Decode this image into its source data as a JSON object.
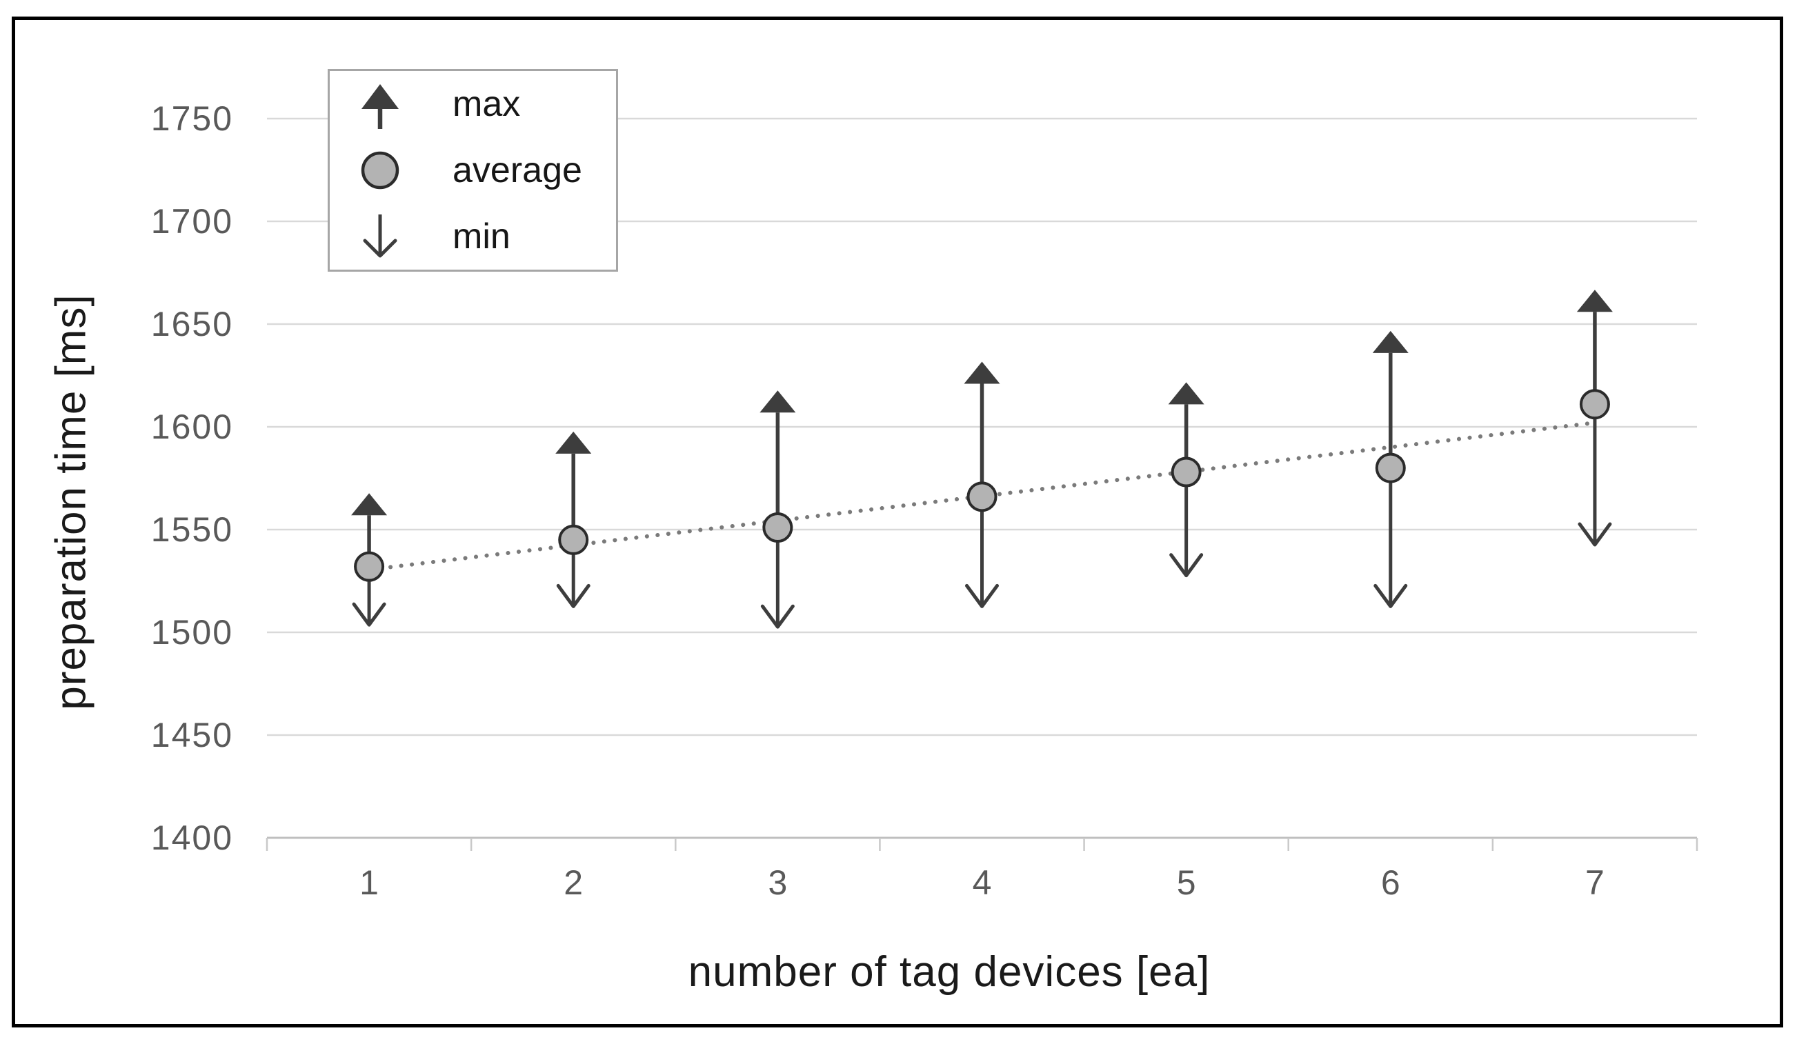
{
  "page": {
    "background": "#ffffff",
    "border_color": "#000000"
  },
  "axes": {
    "x_title": "number of tag devices [ea]",
    "y_title": "preparation time [ms]",
    "y_tick_labels": [
      "1750",
      "1700",
      "1650",
      "1600",
      "1550",
      "1500",
      "1450",
      "1400"
    ],
    "x_tick_labels": [
      "1",
      "2",
      "3",
      "4",
      "5",
      "6",
      "7"
    ]
  },
  "legend": {
    "items": [
      {
        "icon": "max-up-arrow-icon",
        "label": "max"
      },
      {
        "icon": "average-circle-icon",
        "label": "average"
      },
      {
        "icon": "min-down-arrow-icon",
        "label": "min"
      }
    ]
  },
  "chart_data": {
    "type": "scatter",
    "title": "",
    "xlabel": "number of tag devices [ea]",
    "ylabel": "preparation time [ms]",
    "categories": [
      1,
      2,
      3,
      4,
      5,
      6,
      7
    ],
    "series": [
      {
        "name": "max",
        "marker": "filled-up-arrow",
        "values": [
          1562,
          1592,
          1612,
          1626,
          1616,
          1641,
          1661
        ]
      },
      {
        "name": "average",
        "marker": "filled-circle",
        "values": [
          1532,
          1545,
          1551,
          1566,
          1578,
          1580,
          1611
        ]
      },
      {
        "name": "min",
        "marker": "open-down-arrow",
        "values": [
          1509,
          1518,
          1508,
          1518,
          1533,
          1518,
          1548
        ]
      }
    ],
    "trendline": {
      "series": "average",
      "style": "dotted",
      "x": [
        1,
        7
      ],
      "y": [
        1530.5,
        1602
      ]
    },
    "ylim": [
      1400,
      1750
    ],
    "y_tick_step": 50,
    "grid": true,
    "legend_position": "top-left-inside"
  },
  "colors": {
    "marker_dark": "#3d3d3d",
    "circle_fill": "#b3b3b3",
    "circle_stroke": "#2b2b2b",
    "gridline": "#d9d9d9",
    "axis_line": "#bfbfbf",
    "tick": "#c9c9c9",
    "trendline": "#7a7a7a",
    "tick_label": "#595959",
    "title_text": "#1a1a1a",
    "legend_border": "#a6a6a6"
  }
}
